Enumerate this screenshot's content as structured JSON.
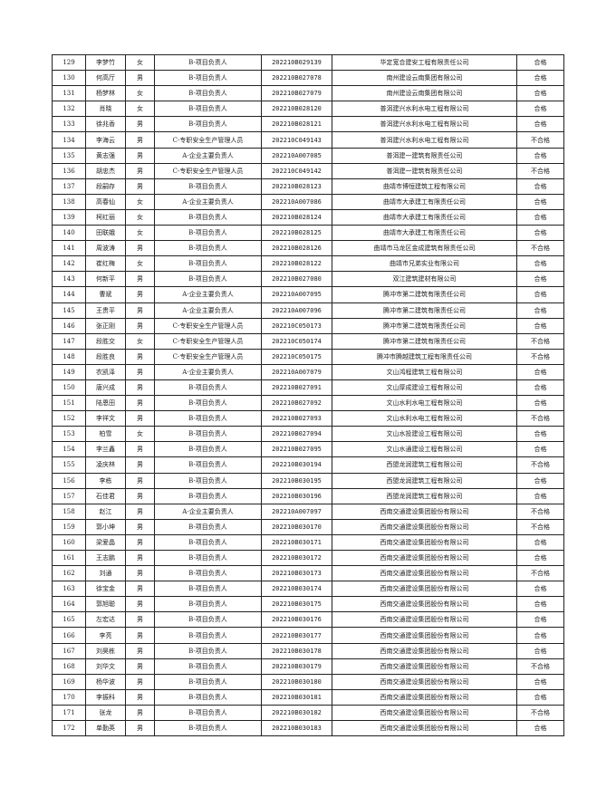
{
  "rows": [
    [
      "129",
      "李梦竹",
      "女",
      "B-项目负责人",
      "202210B029139",
      "华定宽合建安工程有限责任公司",
      "合格"
    ],
    [
      "130",
      "何高厅",
      "男",
      "B-项目负责人",
      "202210B027078",
      "南州建设云南集团有限公司",
      "合格"
    ],
    [
      "131",
      "杨梦林",
      "女",
      "B-项目负责人",
      "202210B027079",
      "南州建设云南集团有限公司",
      "合格"
    ],
    [
      "132",
      "肖晓",
      "女",
      "B-项目负责人",
      "202210B028120",
      "普洱建兴水利水电工程有限公司",
      "合格"
    ],
    [
      "133",
      "徐兆香",
      "男",
      "B-项目负责人",
      "202210B028121",
      "普洱建兴水利水电工程有限公司",
      "合格"
    ],
    [
      "134",
      "李海云",
      "男",
      "C-专职安全生产管理人员",
      "202210C049143",
      "普洱建兴水利水电工程有限公司",
      "不合格"
    ],
    [
      "135",
      "黄志强",
      "男",
      "A-企业主要负责人",
      "202210A007085",
      "普洱建一建筑有限责任公司",
      "合格"
    ],
    [
      "136",
      "胡忠杰",
      "男",
      "C-专职安全生产管理人员",
      "202210C049142",
      "普洱建一建筑有限责任公司",
      "不合格"
    ],
    [
      "137",
      "段嗣存",
      "男",
      "B-项目负责人",
      "202210B028123",
      "曲靖市博恒建筑工程有限公司",
      "合格"
    ],
    [
      "138",
      "高春仙",
      "女",
      "A-企业主要负责人",
      "202210A007086",
      "曲靖市大承建工有限责任公司",
      "合格"
    ],
    [
      "139",
      "柯红丽",
      "女",
      "B-项目负责人",
      "202210B028124",
      "曲靖市大承建工有限责任公司",
      "合格"
    ],
    [
      "140",
      "田联娥",
      "女",
      "B-项目负责人",
      "202210B028125",
      "曲靖市大承建工有限责任公司",
      "合格"
    ],
    [
      "141",
      "周波涛",
      "男",
      "B-项目负责人",
      "202210B028126",
      "曲靖市马龙区金成建筑有限责任公司",
      "不合格"
    ],
    [
      "142",
      "崔红梅",
      "女",
      "B-项目负责人",
      "202210B028122",
      "曲靖市兄弟实业有限公司",
      "合格"
    ],
    [
      "143",
      "何新平",
      "男",
      "B-项目负责人",
      "202210B027080",
      "双江建筑建材有限公司",
      "合格"
    ],
    [
      "144",
      "曹斌",
      "男",
      "A-企业主要负责人",
      "202210A007095",
      "腾冲市第二建筑有限责任公司",
      "合格"
    ],
    [
      "145",
      "王贵平",
      "男",
      "A-企业主要负责人",
      "202210A007096",
      "腾冲市第二建筑有限责任公司",
      "合格"
    ],
    [
      "146",
      "张正刚",
      "男",
      "C-专职安全生产管理人员",
      "202210C050173",
      "腾冲市第二建筑有限责任公司",
      "合格"
    ],
    [
      "147",
      "段胜交",
      "女",
      "C-专职安全生产管理人员",
      "202210C050174",
      "腾冲市第二建筑有限责任公司",
      "不合格"
    ],
    [
      "148",
      "段胜良",
      "男",
      "C-专职安全生产管理人员",
      "202210C050175",
      "腾冲市腾越建筑工程有限责任公司",
      "不合格"
    ],
    [
      "149",
      "农凯泽",
      "男",
      "A-企业主要负责人",
      "202210A007079",
      "文山鸿程建筑工程有限公司",
      "合格"
    ],
    [
      "150",
      "唐兴成",
      "男",
      "B-项目负责人",
      "202210B027091",
      "文山厚成建设工程有限公司",
      "合格"
    ],
    [
      "151",
      "陆恩田",
      "男",
      "B-项目负责人",
      "202210B027092",
      "文山水利水电工程有限公司",
      "合格"
    ],
    [
      "152",
      "李祥文",
      "男",
      "B-项目负责人",
      "202210B027093",
      "文山水利水电工程有限公司",
      "不合格"
    ],
    [
      "153",
      "柏雪",
      "女",
      "B-项目负责人",
      "202210B027094",
      "文山水投建设工程有限公司",
      "合格"
    ],
    [
      "154",
      "李兰鑫",
      "男",
      "B-项目负责人",
      "202210B027095",
      "文山水通建设工程有限公司",
      "合格"
    ],
    [
      "155",
      "凌庆林",
      "男",
      "B-项目负责人",
      "202210B030194",
      "西盟龙润建筑工程有限公司",
      "不合格"
    ],
    [
      "156",
      "李栋",
      "男",
      "B-项目负责人",
      "202210B030195",
      "西盟龙润建筑工程有限公司",
      "合格"
    ],
    [
      "157",
      "石佳君",
      "男",
      "B-项目负责人",
      "202210B030196",
      "西盟龙润建筑工程有限公司",
      "合格"
    ],
    [
      "158",
      "赵江",
      "男",
      "A-企业主要负责人",
      "202210A007097",
      "西南交通建设集团股份有限公司",
      "不合格"
    ],
    [
      "159",
      "郭小坤",
      "男",
      "B-项目负责人",
      "202210B030170",
      "西南交通建设集团股份有限公司",
      "不合格"
    ],
    [
      "160",
      "梁爱晶",
      "男",
      "B-项目负责人",
      "202210B030171",
      "西南交通建设集团股份有限公司",
      "合格"
    ],
    [
      "161",
      "王志鹏",
      "男",
      "B-项目负责人",
      "202210B030172",
      "西南交通建设集团股份有限公司",
      "合格"
    ],
    [
      "162",
      "刘通",
      "男",
      "B-项目负责人",
      "202210B030173",
      "西南交通建设集团股份有限公司",
      "不合格"
    ],
    [
      "163",
      "徐宝金",
      "男",
      "B-项目负责人",
      "202210B030174",
      "西南交通建设集团股份有限公司",
      "合格"
    ],
    [
      "164",
      "郭旭聪",
      "男",
      "B-项目负责人",
      "202210B030175",
      "西南交通建设集团股份有限公司",
      "合格"
    ],
    [
      "165",
      "左宏达",
      "男",
      "B-项目负责人",
      "202210B030176",
      "西南交通建设集团股份有限公司",
      "合格"
    ],
    [
      "166",
      "李亮",
      "男",
      "B-项目负责人",
      "202210B030177",
      "西南交通建设集团股份有限公司",
      "合格"
    ],
    [
      "167",
      "刘昊栋",
      "男",
      "B-项目负责人",
      "202210B030178",
      "西南交通建设集团股份有限公司",
      "合格"
    ],
    [
      "168",
      "刘华文",
      "男",
      "B-项目负责人",
      "202210B030179",
      "西南交通建设集团股份有限公司",
      "不合格"
    ],
    [
      "169",
      "杨华波",
      "男",
      "B-项目负责人",
      "202210B030180",
      "西南交通建设集团股份有限公司",
      "合格"
    ],
    [
      "170",
      "李振科",
      "男",
      "B-项目负责人",
      "202210B030181",
      "西南交通建设集团股份有限公司",
      "合格"
    ],
    [
      "171",
      "张龙",
      "男",
      "B-项目负责人",
      "202210B030182",
      "西南交通建设集团股份有限公司",
      "不合格"
    ],
    [
      "172",
      "单勤英",
      "男",
      "B-项目负责人",
      "202210B030183",
      "西南交通建设集团股份有限公司",
      "合格"
    ]
  ]
}
